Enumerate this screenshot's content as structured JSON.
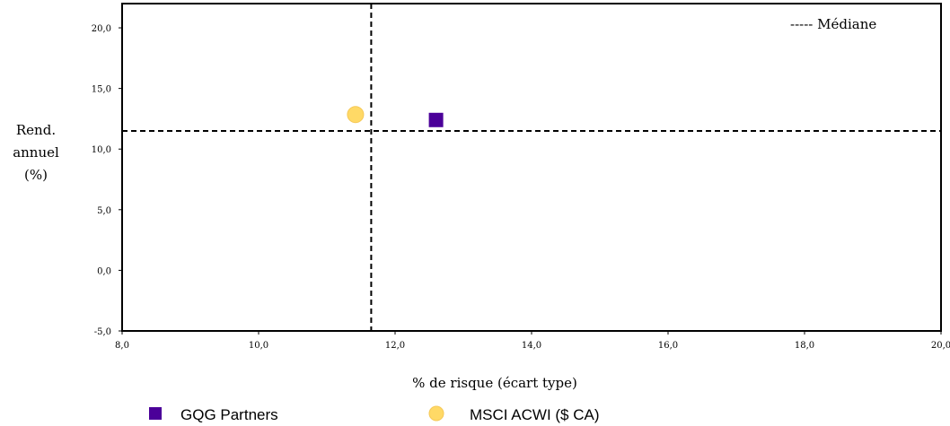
{
  "chart_data": {
    "type": "scatter",
    "xlabel": "% de risque (écart type)",
    "ylabel": [
      "Rend.",
      "annuel",
      "(%)"
    ],
    "xlim": [
      8.0,
      20.0
    ],
    "ylim": [
      -5.0,
      22.0
    ],
    "x_ticks": [
      "8,0",
      "10,0",
      "12,0",
      "14,0",
      "16,0",
      "18,0",
      "20,0"
    ],
    "x_tick_values": [
      8,
      10,
      12,
      14,
      16,
      18,
      20
    ],
    "y_ticks": [
      "-5,0",
      "0,0",
      "5,0",
      "10,0",
      "15,0",
      "20,0"
    ],
    "y_tick_values": [
      -5,
      0,
      5,
      10,
      15,
      20
    ],
    "grid": false,
    "median": {
      "label": "----- Médiane",
      "x": 11.65,
      "y": 11.5
    },
    "series": [
      {
        "name": "GQG Partners",
        "x": 12.6,
        "y": 12.4,
        "marker": "square",
        "color": "#4b0099"
      },
      {
        "name": "MSCI ACWI ($ CA)",
        "x": 11.42,
        "y": 12.85,
        "marker": "circle",
        "color": "#ffd966"
      }
    ],
    "legend_position": "bottom"
  }
}
